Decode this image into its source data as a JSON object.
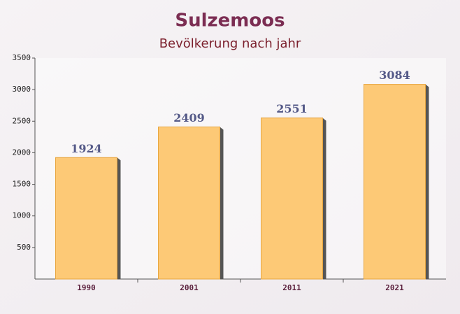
{
  "chart_data": {
    "type": "bar",
    "title": "Sulzemoos",
    "subtitle": "Bevölkerung nach jahr",
    "categories": [
      "1990",
      "2001",
      "2011",
      "2021"
    ],
    "values": [
      1924,
      2409,
      2551,
      3084
    ],
    "color": "#fdc46a",
    "ylim": [
      0,
      3500
    ],
    "yticks": [
      500,
      1000,
      1500,
      2000,
      2500,
      3000,
      3500
    ]
  }
}
